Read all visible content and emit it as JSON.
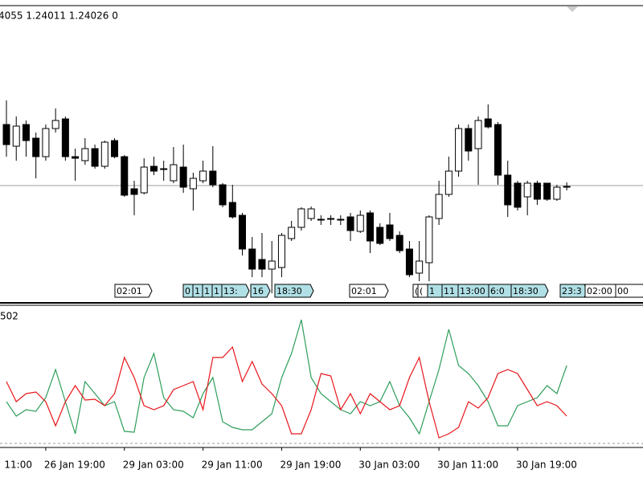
{
  "chart_data": [
    {
      "type": "candlestick",
      "header": "4055 1.24011 1.24026 0",
      "up_color": "#ffffff",
      "down_color": "#000000",
      "price_line": 1.2402,
      "ylim": [
        1.23732,
        1.24466
      ],
      "leading_x_label": "11:00",
      "categories": [
        null,
        null,
        null,
        null,
        "26 Jan 19:00",
        null,
        null,
        null,
        null,
        null,
        null,
        null,
        "29 Jan 03:00",
        null,
        null,
        null,
        null,
        null,
        null,
        null,
        "29 Jan 11:00",
        null,
        null,
        null,
        null,
        null,
        null,
        null,
        "29 Jan 19:00",
        null,
        null,
        null,
        null,
        null,
        null,
        null,
        "30 Jan 03:00",
        null,
        null,
        null,
        null,
        null,
        null,
        null,
        "30 Jan 11:00",
        null,
        null,
        null,
        null,
        null,
        null,
        null,
        "30 Jan 19:00",
        null,
        null,
        null,
        null,
        null
      ],
      "open": [
        1.24172,
        1.24118,
        1.24172,
        1.24138,
        1.24092,
        1.24162,
        1.24186,
        1.24092,
        1.24082,
        1.24112,
        1.24068,
        1.24132,
        1.24092,
        1.24012,
        1.24002,
        1.24068,
        1.24062,
        1.24032,
        1.24066,
        1.24012,
        1.24032,
        1.24056,
        1.24022,
        1.23978,
        1.23946,
        1.23862,
        1.23836,
        1.23812,
        1.23816,
        1.23888,
        1.23916,
        1.23938,
        1.23936,
        1.23938,
        1.23936,
        1.23942,
        1.23906,
        1.23952,
        1.23916,
        1.23922,
        1.23896,
        1.23862,
        1.23802,
        1.23828,
        1.23938,
        1.23998,
        1.24056,
        1.24162,
        1.24112,
        1.24186,
        1.24172,
        1.24046,
        1.24026,
        1.23992,
        1.24026,
        1.24026,
        1.23986,
        1.24018
      ],
      "high": [
        1.24232,
        1.24192,
        1.24182,
        1.24152,
        1.24172,
        1.24212,
        1.24192,
        1.24112,
        1.24138,
        1.24122,
        1.24132,
        1.24138,
        1.24096,
        1.24032,
        1.24088,
        1.24092,
        1.24082,
        1.24116,
        1.24122,
        1.24052,
        1.24082,
        1.24118,
        1.24026,
        1.24022,
        1.23952,
        1.23892,
        1.23902,
        1.23882,
        1.23902,
        1.23932,
        1.23966,
        1.23968,
        1.23946,
        1.23946,
        1.23946,
        1.23952,
        1.23958,
        1.23958,
        1.23926,
        1.23952,
        1.23906,
        1.23882,
        1.23882,
        1.23946,
        1.24032,
        1.24092,
        1.24172,
        1.24172,
        1.24192,
        1.24222,
        1.24178,
        1.24082,
        1.24032,
        1.24032,
        1.24032,
        1.24026,
        1.24022,
        1.24028
      ],
      "low": [
        1.24092,
        1.24082,
        1.24092,
        1.24038,
        1.24082,
        1.24152,
        1.24082,
        1.24032,
        1.24072,
        1.24062,
        1.24062,
        1.24088,
        1.23992,
        1.23946,
        1.23998,
        1.24046,
        1.24032,
        1.24026,
        1.24002,
        1.23958,
        1.24026,
        1.24016,
        1.23966,
        1.23938,
        1.23846,
        1.23792,
        1.23792,
        1.23752,
        1.23792,
        1.23882,
        1.23908,
        1.23932,
        1.23922,
        1.23922,
        1.23922,
        1.23882,
        1.23902,
        1.23852,
        1.23872,
        1.23882,
        1.23852,
        1.23792,
        1.23782,
        1.23782,
        1.23922,
        1.23992,
        1.24042,
        1.24082,
        1.24022,
        1.24162,
        1.24022,
        1.23942,
        1.23958,
        1.23946,
        1.23972,
        1.23982,
        1.23982,
        1.24008
      ],
      "close": [
        1.24122,
        1.24168,
        1.24132,
        1.24092,
        1.24162,
        1.24182,
        1.24092,
        1.24088,
        1.24112,
        1.24068,
        1.24128,
        1.24092,
        1.23996,
        1.23998,
        1.24066,
        1.24056,
        1.2406,
        1.24072,
        1.24016,
        1.24038,
        1.24056,
        1.24022,
        1.23972,
        1.23942,
        1.23862,
        1.23812,
        1.23812,
        1.23832,
        1.23896,
        1.23916,
        1.23962,
        1.23962,
        1.23934,
        1.23936,
        1.23934,
        1.23908,
        1.23946,
        1.23882,
        1.23876,
        1.23888,
        1.23858,
        1.23798,
        1.23832,
        1.23942,
        1.23998,
        1.24056,
        1.24162,
        1.24106,
        1.24182,
        1.24166,
        1.24046,
        1.23972,
        1.23966,
        1.24026,
        1.23986,
        1.23986,
        1.24016,
        1.24016
      ],
      "events": [
        {
          "text": "02:01",
          "color": "#ffffff"
        },
        {
          "text": "0",
          "color": "#b0e0e6"
        },
        {
          "text": "1",
          "color": "#b0e0e6"
        },
        {
          "text": "1",
          "color": "#b0e0e6"
        },
        {
          "text": "1",
          "color": "#b0e0e6"
        },
        {
          "text": "13:",
          "color": "#b0e0e6"
        },
        {
          "text": "16",
          "color": "#b0e0e6"
        },
        {
          "text": "18:30",
          "color": "#b0e0e6"
        },
        {
          "text": "02:01",
          "color": "#ffffff"
        },
        {
          "text": "(",
          "color": "#ffffff"
        },
        {
          "text": "(",
          "color": "#ffffff"
        },
        {
          "text": "1",
          "color": "#b0e0e6"
        },
        {
          "text": "11",
          "color": "#b0e0e6"
        },
        {
          "text": "13:00",
          "color": "#b0e0e6"
        },
        {
          "text": "6:0",
          "color": "#b0e0e6"
        },
        {
          "text": "18:30",
          "color": "#b0e0e6"
        },
        {
          "text": "23:3",
          "color": "#b0e0e6"
        },
        {
          "text": "02:00",
          "color": "#ffffff"
        },
        {
          "text": "00",
          "color": "#ffffff"
        }
      ]
    },
    {
      "type": "line",
      "label": "502",
      "ylim": [
        0,
        172
      ],
      "series": [
        {
          "color": "#2e9e5b",
          "values": [
            52,
            34,
            42,
            40,
            57,
            92,
            52,
            12,
            77,
            62,
            47,
            52,
            15,
            14,
            82,
            112,
            57,
            42,
            40,
            32,
            62,
            82,
            27,
            20,
            17,
            17,
            27,
            37,
            82,
            112,
            154,
            82,
            62,
            52,
            42,
            37,
            52,
            47,
            52,
            77,
            47,
            32,
            12,
            52,
            92,
            142,
            97,
            87,
            72,
            52,
            22,
            22,
            47,
            52,
            57,
            72,
            62,
            97
          ]
        },
        {
          "color": "#e8161b",
          "values": [
            77,
            52,
            62,
            64,
            52,
            22,
            52,
            72,
            54,
            55,
            47,
            62,
            107,
            82,
            47,
            42,
            47,
            67,
            72,
            77,
            42,
            107,
            107,
            120,
            77,
            102,
            74,
            62,
            47,
            12,
            12,
            42,
            87,
            84,
            42,
            62,
            37,
            62,
            52,
            42,
            47,
            82,
            107,
            52,
            7,
            12,
            20,
            52,
            44,
            57,
            87,
            92,
            87,
            67,
            47,
            52,
            47,
            34
          ]
        }
      ]
    }
  ]
}
